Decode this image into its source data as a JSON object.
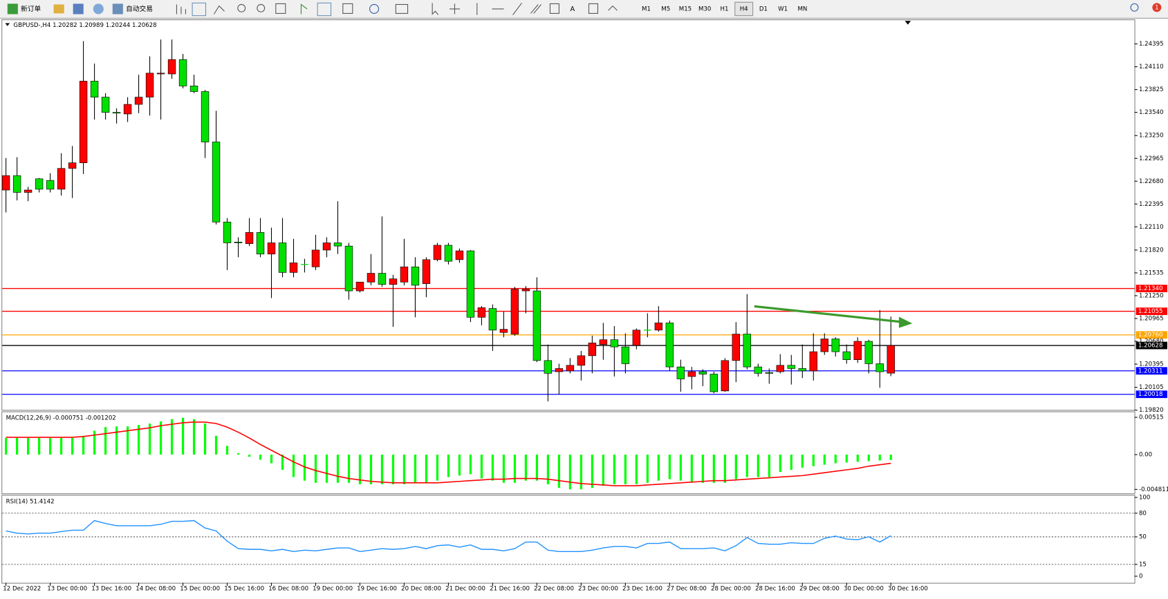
{
  "toolbar": {
    "new_order": "新订单",
    "auto_trading": "自动交易",
    "timeframes": [
      "M1",
      "M5",
      "M15",
      "M30",
      "H1",
      "H4",
      "D1",
      "W1",
      "MN"
    ],
    "active_timeframe": "H4",
    "notifications": "1"
  },
  "chart_data": [
    {
      "type": "candlestick",
      "title": "GBPUSD-,H4  1.20282 1.20989 1.20244 1.20628",
      "x": [
        "12 Dec 2022",
        null,
        null,
        null,
        "13 Dec 00:00",
        null,
        null,
        null,
        "13 Dec 16:00",
        null,
        null,
        null,
        "14 Dec 08:00",
        null,
        null,
        null,
        "15 Dec 00:00",
        null,
        null,
        null,
        "15 Dec 16:00",
        null,
        null,
        null,
        "16 Dec 08:00",
        null,
        null,
        null,
        "19 Dec 00:00",
        null,
        null,
        null,
        "19 Dec 16:00",
        null,
        null,
        null,
        "20 Dec 08:00",
        null,
        null,
        null,
        "21 Dec 00:00",
        null,
        null,
        null,
        "21 Dec 16:00",
        null,
        null,
        null,
        "22 Dec 08:00",
        null,
        null,
        null,
        "23 Dec 00:00",
        null,
        null,
        null,
        "23 Dec 16:00",
        null,
        null,
        null,
        "27 Dec 08:00",
        null,
        null,
        null,
        "28 Dec 00:00",
        null,
        null,
        null,
        "28 Dec 16:00",
        null,
        null,
        null,
        "29 Dec 08:00",
        null,
        null,
        null,
        "30 Dec 00:00",
        null,
        null,
        null,
        "30 Dec 16:00"
      ],
      "ohlc": [
        [
          1.2257,
          1.2297,
          1.2229,
          1.2275
        ],
        [
          1.2275,
          1.2298,
          1.2244,
          1.2254
        ],
        [
          1.2254,
          1.2261,
          1.2243,
          1.2257
        ],
        [
          1.2271,
          1.2272,
          1.2254,
          1.2258
        ],
        [
          1.2269,
          1.2278,
          1.2254,
          1.2258
        ],
        [
          1.2258,
          1.2303,
          1.225,
          1.2284
        ],
        [
          1.2284,
          1.2312,
          1.2247,
          1.2291
        ],
        [
          1.2291,
          1.2443,
          1.2277,
          1.2393
        ],
        [
          1.2393,
          1.2415,
          1.2345,
          1.2373
        ],
        [
          1.2373,
          1.2378,
          1.2345,
          1.2354
        ],
        [
          1.2354,
          1.2359,
          1.234,
          1.2353
        ],
        [
          1.2352,
          1.2373,
          1.2342,
          1.2364
        ],
        [
          1.2364,
          1.2401,
          1.2353,
          1.2373
        ],
        [
          1.2373,
          1.2424,
          1.235,
          1.2403
        ],
        [
          1.2402,
          1.2445,
          1.2345,
          1.2403
        ],
        [
          1.2402,
          1.2445,
          1.2396,
          1.242
        ],
        [
          1.242,
          1.2427,
          1.2384,
          1.2387
        ],
        [
          1.2387,
          1.2401,
          1.2378,
          1.238
        ],
        [
          1.238,
          1.2382,
          1.2297,
          1.2317
        ],
        [
          1.2317,
          1.2356,
          1.2214,
          1.2217
        ],
        [
          1.2217,
          1.2222,
          1.2157,
          1.2191
        ],
        [
          1.2192,
          1.2198,
          1.2173,
          1.2191
        ],
        [
          1.219,
          1.2222,
          1.2187,
          1.2204
        ],
        [
          1.2204,
          1.2222,
          1.2173,
          1.2177
        ],
        [
          1.2177,
          1.221,
          1.2122,
          1.2191
        ],
        [
          1.2191,
          1.2222,
          1.2148,
          1.2154
        ],
        [
          1.2154,
          1.2196,
          1.2148,
          1.2166
        ],
        [
          1.2164,
          1.2171,
          1.2154,
          1.2164
        ],
        [
          1.2161,
          1.2201,
          1.2157,
          1.2182
        ],
        [
          1.2182,
          1.2198,
          1.2173,
          1.2191
        ],
        [
          1.2191,
          1.2243,
          1.2177,
          1.2187
        ],
        [
          1.2187,
          1.2191,
          1.212,
          1.2131
        ],
        [
          1.2131,
          1.2142,
          1.2129,
          1.2142
        ],
        [
          1.2142,
          1.2177,
          1.2138,
          1.2153
        ],
        [
          1.2153,
          1.2224,
          1.2136,
          1.2139
        ],
        [
          1.2139,
          1.2151,
          1.2086,
          1.2146
        ],
        [
          1.2142,
          1.2196,
          1.2138,
          1.2161
        ],
        [
          1.2161,
          1.2173,
          1.2098,
          1.2138
        ],
        [
          1.214,
          1.2173,
          1.2123,
          1.217
        ],
        [
          1.217,
          1.2191,
          1.2168,
          1.2188
        ],
        [
          1.2188,
          1.2191,
          1.2164,
          1.2168
        ],
        [
          1.217,
          1.2184,
          1.2166,
          1.2181
        ],
        [
          1.2181,
          1.2182,
          1.2092,
          1.2098
        ],
        [
          1.2098,
          1.2112,
          1.2088,
          1.211
        ],
        [
          1.2109,
          1.2114,
          1.2056,
          1.2082
        ],
        [
          1.2079,
          1.2105,
          1.2073,
          1.2083
        ],
        [
          1.2077,
          1.2136,
          1.2075,
          1.2133
        ],
        [
          1.2131,
          1.2137,
          1.2103,
          1.2133
        ],
        [
          1.2131,
          1.2148,
          1.2042,
          1.2044
        ],
        [
          1.2044,
          1.2064,
          1.1993,
          1.2028
        ],
        [
          1.203,
          1.204,
          1.2002,
          1.2034
        ],
        [
          1.2031,
          1.2047,
          1.2028,
          1.2038
        ],
        [
          1.2038,
          1.2056,
          1.2019,
          1.205
        ],
        [
          1.205,
          1.2075,
          1.2028,
          1.2066
        ],
        [
          1.2064,
          1.2091,
          1.2045,
          1.207
        ],
        [
          1.207,
          1.2087,
          1.2024,
          1.2061
        ],
        [
          1.2061,
          1.2078,
          1.2028,
          1.204
        ],
        [
          1.2063,
          1.2084,
          1.2058,
          1.2082
        ],
        [
          1.2082,
          1.2103,
          1.2073,
          1.2082
        ],
        [
          1.2082,
          1.2112,
          1.208,
          1.2091
        ],
        [
          1.2091,
          1.2094,
          1.2031,
          1.2036
        ],
        [
          1.2036,
          1.2045,
          1.2005,
          1.2021
        ],
        [
          1.2024,
          1.2036,
          1.2008,
          1.203
        ],
        [
          1.203,
          1.2033,
          1.2012,
          1.2027
        ],
        [
          1.2027,
          1.203,
          1.2003,
          1.2005
        ],
        [
          1.2006,
          1.2047,
          1.2005,
          1.2044
        ],
        [
          1.2044,
          1.2092,
          1.2017,
          1.2077
        ],
        [
          1.2077,
          1.2127,
          1.2033,
          1.2036
        ],
        [
          1.2036,
          1.204,
          1.2024,
          1.2028
        ],
        [
          1.2029,
          1.2034,
          1.2015,
          1.2028
        ],
        [
          1.203,
          1.2052,
          1.2028,
          1.2038
        ],
        [
          1.2038,
          1.2051,
          1.2014,
          1.2034
        ],
        [
          1.2034,
          1.2064,
          1.2022,
          1.2031
        ],
        [
          1.2031,
          1.2078,
          1.2019,
          1.2055
        ],
        [
          1.2055,
          1.2078,
          1.2051,
          1.2071
        ],
        [
          1.2071,
          1.2073,
          1.2049,
          1.2055
        ],
        [
          1.2055,
          1.2064,
          1.204,
          1.2045
        ],
        [
          1.2045,
          1.2073,
          1.2041,
          1.2068
        ],
        [
          1.2068,
          1.207,
          1.2028,
          1.204
        ],
        [
          1.204,
          1.2107,
          1.201,
          1.203
        ],
        [
          1.20282,
          1.20989,
          1.20244,
          1.20628
        ]
      ],
      "up_color": "#ff0000",
      "down_color": "#00e000",
      "ylim": [
        1.19823,
        1.24683
      ],
      "yticks": [
        1.24395,
        {
          "value": 1.2411,
          "label": "1.24110"
        },
        1.23825,
        {
          "value": 1.2354,
          "label": "1.23540"
        },
        {
          "value": 1.2325,
          "label": "1.23250"
        },
        1.22965,
        {
          "value": 1.2268,
          "label": "1.22680"
        },
        1.22395,
        {
          "value": 1.2211,
          "label": "1.22110"
        },
        {
          "value": 1.2182,
          "label": "1.21820"
        },
        1.21535,
        {
          "value": 1.2125,
          "label": "1.21250"
        },
        1.20965,
        {
          "value": 1.2068,
          "label": "1.20680"
        },
        1.20395,
        1.20105,
        {
          "value": 1.1982,
          "label": "1.19820"
        }
      ],
      "levels": [
        {
          "value": 1.2134,
          "label": "1.21340",
          "color": "#ff0000"
        },
        {
          "value": 1.21055,
          "label": "1.21055",
          "color": "#ff0000"
        },
        {
          "value": 1.2076,
          "label": "1.20760",
          "color": "#ffa500"
        },
        {
          "value": 1.20628,
          "label": "1.20628",
          "color": "#000000"
        },
        {
          "value": 1.20311,
          "label": "1.20311",
          "color": "#0000ff"
        },
        {
          "value": 1.20018,
          "label": "1.20018",
          "color": "#0000ff"
        }
      ]
    },
    {
      "type": "macd",
      "title": "MACD(12,26,9) -0.000751 -0.001202",
      "values": [
        0.0023,
        0.0023,
        0.0023,
        0.0023,
        0.0023,
        0.0023,
        0.0023,
        0.0026,
        0.0033,
        0.0038,
        0.0039,
        0.0039,
        0.0041,
        0.0043,
        0.0046,
        0.0049,
        0.0051,
        0.0049,
        0.0043,
        0.0026,
        0.0012,
        0.0002,
        -0.0003,
        -0.0007,
        -0.0012,
        -0.0021,
        -0.0031,
        -0.0036,
        -0.0039,
        -0.0039,
        -0.0039,
        -0.0039,
        -0.0041,
        -0.0041,
        -0.0041,
        -0.0041,
        -0.0041,
        -0.0039,
        -0.0039,
        -0.0036,
        -0.0031,
        -0.0029,
        -0.0027,
        -0.0033,
        -0.0036,
        -0.0039,
        -0.0039,
        -0.0036,
        -0.0036,
        -0.0041,
        -0.0046,
        -0.0048,
        -0.0048,
        -0.0046,
        -0.0043,
        -0.0041,
        -0.0041,
        -0.0041,
        -0.0039,
        -0.0036,
        -0.0034,
        -0.0036,
        -0.0038,
        -0.0039,
        -0.0039,
        -0.0039,
        -0.0034,
        -0.0031,
        -0.0031,
        -0.0031,
        -0.0024,
        -0.0021,
        -0.0018,
        -0.0016,
        -0.0014,
        -0.0012,
        -0.0011,
        -0.001,
        -0.0009,
        -0.0008,
        -0.000751
      ],
      "signal": [
        0.0024,
        0.0024,
        0.0024,
        0.0024,
        0.0024,
        0.0024,
        0.0024,
        0.0025,
        0.0027,
        0.0029,
        0.0031,
        0.0033,
        0.0035,
        0.0037,
        0.004,
        0.0042,
        0.0044,
        0.0045,
        0.0045,
        0.0043,
        0.0038,
        0.0031,
        0.0023,
        0.0014,
        0.0006,
        -0.0002,
        -0.001,
        -0.0017,
        -0.0022,
        -0.0026,
        -0.003,
        -0.0033,
        -0.0035,
        -0.0037,
        -0.0038,
        -0.0039,
        -0.0039,
        -0.0039,
        -0.0039,
        -0.0039,
        -0.0038,
        -0.0037,
        -0.0036,
        -0.0035,
        -0.0034,
        -0.0034,
        -0.0033,
        -0.0033,
        -0.0033,
        -0.0034,
        -0.0036,
        -0.0038,
        -0.004,
        -0.0041,
        -0.0042,
        -0.0043,
        -0.0043,
        -0.0043,
        -0.0042,
        -0.0041,
        -0.004,
        -0.0039,
        -0.0038,
        -0.0037,
        -0.0036,
        -0.0036,
        -0.0035,
        -0.0034,
        -0.0033,
        -0.0032,
        -0.0031,
        -0.003,
        -0.0029,
        -0.0027,
        -0.0025,
        -0.0023,
        -0.0021,
        -0.0019,
        -0.0016,
        -0.0014,
        -0.001202
      ],
      "color": "#00ff00",
      "signal_color": "#ff0000",
      "ylim": [
        -0.00536,
        0.00587
      ],
      "yticks": [
        0.00515,
        {
          "value": 0,
          "label": "0.00"
        },
        -0.004811
      ]
    },
    {
      "type": "line",
      "title": "RSI(14) 51.4142",
      "values": [
        57.5,
        54.7,
        53.7,
        54.7,
        54.7,
        56.6,
        58.4,
        58.4,
        70.6,
        66.9,
        64.1,
        64.1,
        64.1,
        64.1,
        65.9,
        69.7,
        69.7,
        70.6,
        61.2,
        57.5,
        44.4,
        35.0,
        34.1,
        34.1,
        32.2,
        34.1,
        31.3,
        33.1,
        32.2,
        34.1,
        35.9,
        35.9,
        31.3,
        33.1,
        35.0,
        34.1,
        35.0,
        37.8,
        35.0,
        38.8,
        39.7,
        36.9,
        39.7,
        34.1,
        34.1,
        32.2,
        35.0,
        43.4,
        43.4,
        33.1,
        31.3,
        31.3,
        31.3,
        33.1,
        35.9,
        37.8,
        37.8,
        35.9,
        41.6,
        41.6,
        43.4,
        35.0,
        35.0,
        35.0,
        35.9,
        32.2,
        38.8,
        49.1,
        41.6,
        40.6,
        40.6,
        42.5,
        41.6,
        41.6,
        48.1,
        50.9,
        47.2,
        46.3,
        50.0,
        43.4,
        51.4142
      ],
      "color": "#1e90ff",
      "ylim": [
        -8.4,
        102.3
      ],
      "yticks": [
        100,
        80,
        50,
        15,
        0
      ],
      "levels": [
        80,
        50,
        15
      ]
    }
  ]
}
